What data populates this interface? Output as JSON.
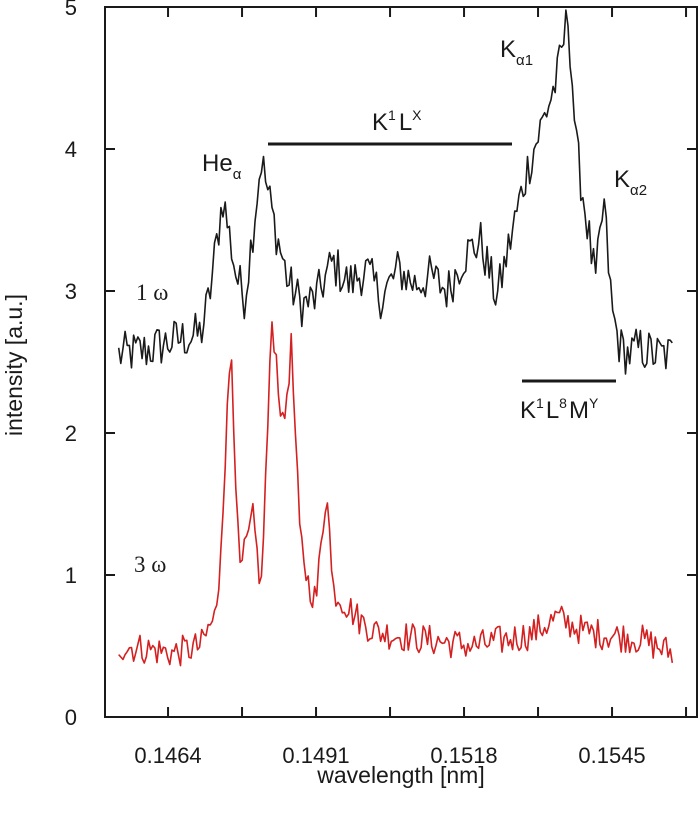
{
  "chart_data": {
    "type": "line",
    "xlabel": "wavelength [nm]",
    "ylabel": "intensity [a.u.]",
    "xlim": [
      0.14525,
      0.15605
    ],
    "ylim": [
      0,
      5
    ],
    "xticks": [
      "0.1464",
      "0.1491",
      "0.1518",
      "0.1545"
    ],
    "yticks": [
      "0",
      "1",
      "2",
      "3",
      "4",
      "5"
    ],
    "grid": false,
    "legend": "none",
    "series": [
      {
        "name": "1 ω",
        "color": "#1a1a1a",
        "x": [
          0.1455,
          0.146,
          0.1465,
          0.147,
          0.14715,
          0.1474,
          0.14765,
          0.1478,
          0.1481,
          0.14835,
          0.1486,
          0.14885,
          0.1491,
          0.1494,
          0.1497,
          0.15,
          0.1503,
          0.1506,
          0.1509,
          0.1512,
          0.1515,
          0.1518,
          0.1521,
          0.1524,
          0.1527,
          0.15295,
          0.1532,
          0.1535,
          0.1537,
          0.15385,
          0.154,
          0.1542,
          0.15435,
          0.1545,
          0.15465,
          0.1548,
          0.155,
          0.1553,
          0.1556
        ],
        "y": [
          2.55,
          2.58,
          2.65,
          2.7,
          2.95,
          3.66,
          3.1,
          2.95,
          3.93,
          3.45,
          3.05,
          2.9,
          2.95,
          3.2,
          3.05,
          3.15,
          2.95,
          3.15,
          3.05,
          3.1,
          3.0,
          3.25,
          3.35,
          2.95,
          3.45,
          3.85,
          4.15,
          4.5,
          4.95,
          4.0,
          3.6,
          3.05,
          3.63,
          2.85,
          2.6,
          2.55,
          2.6,
          2.55,
          2.55
        ]
      },
      {
        "name": "3 ω",
        "color": "#d42020",
        "x": [
          0.1455,
          0.146,
          0.1465,
          0.147,
          0.1473,
          0.14755,
          0.1477,
          0.14795,
          0.1481,
          0.1483,
          0.1485,
          0.14865,
          0.1488,
          0.14895,
          0.1491,
          0.1493,
          0.1494,
          0.14975,
          0.1499,
          0.1502,
          0.151,
          0.152,
          0.153,
          0.1535,
          0.154,
          0.155,
          0.1556
        ],
        "y": [
          0.5,
          0.48,
          0.45,
          0.5,
          0.75,
          2.65,
          1.0,
          1.4,
          0.9,
          2.82,
          2.0,
          2.62,
          1.3,
          0.95,
          0.82,
          1.65,
          0.9,
          0.75,
          0.68,
          0.6,
          0.55,
          0.5,
          0.58,
          0.7,
          0.6,
          0.55,
          0.45
        ]
      }
    ],
    "annotations": {
      "he_alpha": {
        "main": "He",
        "sub": "α"
      },
      "k1lx": {
        "k": "K",
        "k_sup": "1",
        "l": "L",
        "l_sup": "X"
      },
      "k_alpha1": {
        "main": "K",
        "sub": "α1"
      },
      "k_alpha2": {
        "main": "K",
        "sub": "α2"
      },
      "k1l8my": {
        "k": "K",
        "k_sup": "1",
        "l": "L",
        "l_sup": "8",
        "m": "M",
        "m_sup": "Y"
      }
    }
  }
}
